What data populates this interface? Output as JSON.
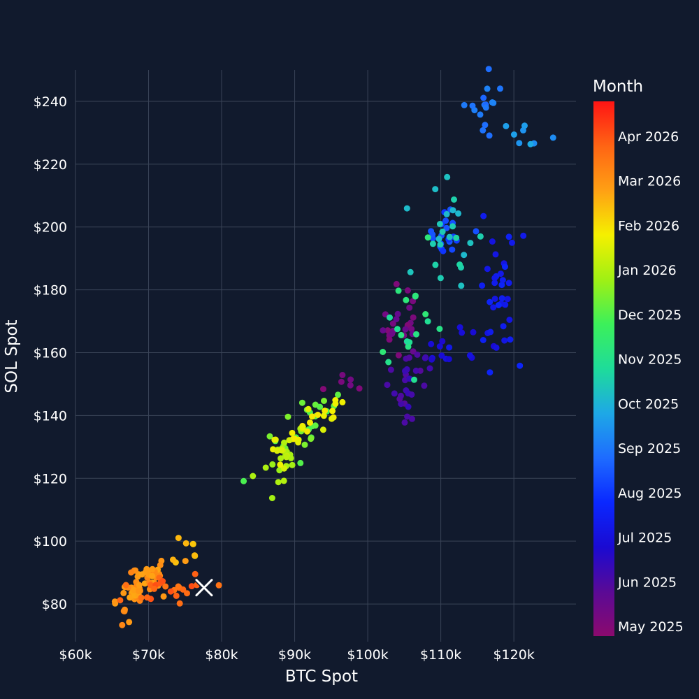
{
  "chart_data": {
    "type": "scatter",
    "xlabel": "BTC Spot",
    "ylabel": "SOL Spot",
    "xlim": [
      60000,
      128500
    ],
    "ylim": [
      68000,
      250000
    ],
    "x_ticks": [
      {
        "value": 60000,
        "label": "$60k"
      },
      {
        "value": 70000,
        "label": "$70k"
      },
      {
        "value": 80000,
        "label": "$80k"
      },
      {
        "value": 90000,
        "label": "$90k"
      },
      {
        "value": 100000,
        "label": "$100k"
      },
      {
        "value": 110000,
        "label": "$110k"
      },
      {
        "value": 120000,
        "label": "$120k"
      }
    ],
    "y_ticks": [
      {
        "value": 80,
        "label": "$80"
      },
      {
        "value": 100,
        "label": "$100"
      },
      {
        "value": 120,
        "label": "$120"
      },
      {
        "value": 140,
        "label": "$140"
      },
      {
        "value": 160,
        "label": "$160"
      },
      {
        "value": 180,
        "label": "$180"
      },
      {
        "value": 200,
        "label": "$200"
      },
      {
        "value": 220,
        "label": "$220"
      },
      {
        "value": 240,
        "label": "$240"
      }
    ],
    "y_range": [
      68,
      250
    ],
    "grid": true,
    "colorbar": {
      "title": "Month",
      "range": [
        0,
        12
      ],
      "ticks": [
        {
          "value": 0,
          "label": "May 2025"
        },
        {
          "value": 1,
          "label": "Jun 2025"
        },
        {
          "value": 2,
          "label": "Jul 2025"
        },
        {
          "value": 3,
          "label": "Aug 2025"
        },
        {
          "value": 4,
          "label": "Sep 2025"
        },
        {
          "value": 5,
          "label": "Oct 2025"
        },
        {
          "value": 6,
          "label": "Nov 2025"
        },
        {
          "value": 7,
          "label": "Dec 2025"
        },
        {
          "value": 8,
          "label": "Jan 2026"
        },
        {
          "value": 9,
          "label": "Feb 2026"
        },
        {
          "value": 10,
          "label": "Mar 2026"
        },
        {
          "value": 11,
          "label": "Apr 2026"
        }
      ],
      "colorscale": [
        "#8b0a6e",
        "#5a0a96",
        "#1a0ad2",
        "#0a28ff",
        "#1e6cff",
        "#1ea8e6",
        "#1edc9a",
        "#3cf05a",
        "#a0f014",
        "#f5f000",
        "#ffa014",
        "#ff6414",
        "#ff1414"
      ]
    },
    "current_marker": {
      "x": 77600,
      "y": 85.2
    },
    "point_clusters": [
      {
        "month": 0.3,
        "cx": 97000,
        "cy": 150,
        "sx": 1500,
        "sy": 3,
        "n": 6,
        "slope": 0
      },
      {
        "month": 0.5,
        "cx": 104500,
        "cy": 170,
        "sx": 1500,
        "sy": 6,
        "n": 24,
        "slope": 0.6
      },
      {
        "month": 1.3,
        "cx": 105500,
        "cy": 150,
        "sx": 1600,
        "sy": 5,
        "n": 28,
        "slope": 0.4
      },
      {
        "month": 2.2,
        "cx": 111000,
        "cy": 160,
        "sx": 2500,
        "sy": 4,
        "n": 16,
        "slope": 0.2
      },
      {
        "month": 2.6,
        "cx": 118000,
        "cy": 178,
        "sx": 1400,
        "sy": 10,
        "n": 34,
        "slope": 0
      },
      {
        "month": 3.4,
        "cx": 110500,
        "cy": 200,
        "sx": 1500,
        "sy": 6,
        "n": 20,
        "slope": 1.2
      },
      {
        "month": 4.2,
        "cx": 116000,
        "cy": 238,
        "sx": 800,
        "sy": 6,
        "n": 16,
        "slope": 2.2
      },
      {
        "month": 4.8,
        "cx": 122000,
        "cy": 229,
        "sx": 1500,
        "sy": 4,
        "n": 8,
        "slope": 0.3
      },
      {
        "month": 5.6,
        "cx": 111000,
        "cy": 198,
        "sx": 2200,
        "sy": 8,
        "n": 24,
        "slope": 1.5
      },
      {
        "month": 6.3,
        "cx": 106000,
        "cy": 170,
        "sx": 2200,
        "sy": 8,
        "n": 18,
        "slope": 2.0
      },
      {
        "month": 7.4,
        "cx": 91500,
        "cy": 137,
        "sx": 2500,
        "sy": 5,
        "n": 26,
        "slope": 1.2
      },
      {
        "month": 8.2,
        "cx": 87500,
        "cy": 125,
        "sx": 1500,
        "sy": 4,
        "n": 22,
        "slope": 1.3
      },
      {
        "month": 8.9,
        "cx": 90500,
        "cy": 133,
        "sx": 2600,
        "sy": 4,
        "n": 30,
        "slope": 1.6
      },
      {
        "month": 9.6,
        "cx": 75000,
        "cy": 97,
        "sx": 2400,
        "sy": 3,
        "n": 8,
        "slope": 1.9
      },
      {
        "month": 10.2,
        "cx": 68500,
        "cy": 85,
        "sx": 2000,
        "sy": 3,
        "n": 60,
        "slope": 1.5
      },
      {
        "month": 11.0,
        "cx": 72500,
        "cy": 85,
        "sx": 3000,
        "sy": 2.5,
        "n": 24,
        "slope": 0.4
      }
    ]
  }
}
